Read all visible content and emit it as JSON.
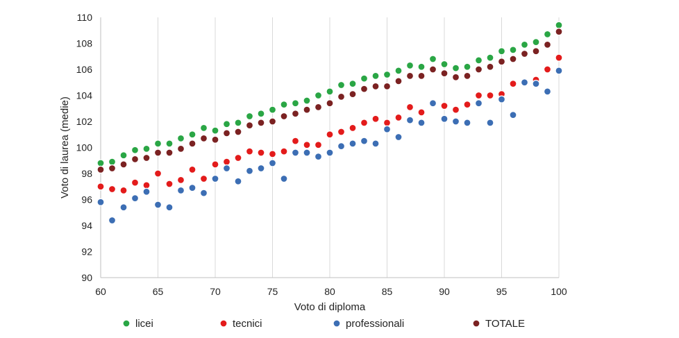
{
  "chart_data": {
    "type": "scatter",
    "xlabel": "Voto di diploma",
    "ylabel": "Voto di laurea (medie)",
    "xlim": [
      60,
      100
    ],
    "ylim": [
      90,
      110
    ],
    "xticks": [
      60,
      65,
      70,
      75,
      80,
      85,
      90,
      95,
      100
    ],
    "yticks": [
      90,
      92,
      94,
      96,
      98,
      100,
      102,
      104,
      106,
      108,
      110
    ],
    "grid": "vertical",
    "legend_position": "bottom",
    "series": [
      {
        "name": "licei",
        "color": "#2aa645",
        "x": [
          60,
          61,
          62,
          63,
          64,
          65,
          66,
          67,
          68,
          69,
          70,
          71,
          72,
          73,
          74,
          75,
          76,
          77,
          78,
          79,
          80,
          81,
          82,
          83,
          84,
          85,
          86,
          87,
          88,
          89,
          90,
          91,
          92,
          93,
          94,
          95,
          96,
          97,
          98,
          99,
          100
        ],
        "y": [
          98.8,
          98.9,
          99.4,
          99.8,
          99.9,
          100.3,
          100.3,
          100.7,
          101.0,
          101.5,
          101.3,
          101.8,
          101.9,
          102.4,
          102.6,
          102.9,
          103.3,
          103.4,
          103.6,
          104.0,
          104.3,
          104.8,
          104.9,
          105.3,
          105.5,
          105.6,
          105.9,
          106.3,
          106.2,
          106.8,
          106.4,
          106.1,
          106.2,
          106.7,
          106.9,
          107.4,
          107.5,
          107.9,
          108.1,
          108.7,
          109.4
        ]
      },
      {
        "name": "tecnici",
        "color": "#e31b1b",
        "x": [
          60,
          61,
          62,
          63,
          64,
          65,
          66,
          67,
          68,
          69,
          70,
          71,
          72,
          73,
          74,
          75,
          76,
          77,
          78,
          79,
          80,
          81,
          82,
          83,
          84,
          85,
          86,
          87,
          88,
          89,
          90,
          91,
          92,
          93,
          94,
          95,
          96,
          97,
          98,
          99,
          100
        ],
        "y": [
          97.0,
          96.8,
          96.7,
          97.3,
          97.1,
          98.0,
          97.2,
          97.5,
          98.3,
          97.6,
          98.7,
          98.9,
          99.2,
          99.7,
          99.6,
          99.5,
          99.7,
          100.5,
          100.2,
          100.2,
          101.0,
          101.2,
          101.5,
          101.9,
          102.2,
          101.9,
          102.3,
          103.1,
          102.7,
          103.4,
          103.2,
          102.9,
          103.3,
          104.0,
          104.0,
          104.1,
          104.9,
          105.0,
          105.2,
          106.0,
          106.9
        ]
      },
      {
        "name": "professionali",
        "color": "#3c6eb4",
        "x": [
          60,
          61,
          62,
          63,
          64,
          65,
          66,
          67,
          68,
          69,
          70,
          71,
          72,
          73,
          74,
          75,
          76,
          77,
          78,
          79,
          80,
          81,
          82,
          83,
          84,
          85,
          86,
          87,
          88,
          89,
          90,
          91,
          92,
          93,
          94,
          95,
          96,
          97,
          98,
          99,
          100
        ],
        "y": [
          95.8,
          94.4,
          95.4,
          96.1,
          96.6,
          95.6,
          95.4,
          96.7,
          96.9,
          96.5,
          97.6,
          98.4,
          97.4,
          98.2,
          98.4,
          98.8,
          97.6,
          99.6,
          99.6,
          99.3,
          99.6,
          100.1,
          100.3,
          100.5,
          100.3,
          101.4,
          100.8,
          102.1,
          101.9,
          103.4,
          102.2,
          102.0,
          101.9,
          103.4,
          101.9,
          103.7,
          102.5,
          105.0,
          104.9,
          104.3,
          105.9
        ]
      },
      {
        "name": "TOTALE",
        "color": "#7b2222",
        "x": [
          60,
          61,
          62,
          63,
          64,
          65,
          66,
          67,
          68,
          69,
          70,
          71,
          72,
          73,
          74,
          75,
          76,
          77,
          78,
          79,
          80,
          81,
          82,
          83,
          84,
          85,
          86,
          87,
          88,
          89,
          90,
          91,
          92,
          93,
          94,
          95,
          96,
          97,
          98,
          99,
          100
        ],
        "y": [
          98.3,
          98.4,
          98.7,
          99.1,
          99.2,
          99.6,
          99.6,
          99.9,
          100.3,
          100.7,
          100.6,
          101.1,
          101.2,
          101.7,
          101.9,
          102.0,
          102.4,
          102.6,
          102.9,
          103.1,
          103.4,
          103.9,
          104.1,
          104.5,
          104.7,
          104.7,
          105.1,
          105.5,
          105.5,
          106.0,
          105.7,
          105.4,
          105.5,
          106.0,
          106.2,
          106.6,
          106.8,
          107.2,
          107.4,
          107.9,
          108.9
        ]
      }
    ]
  }
}
